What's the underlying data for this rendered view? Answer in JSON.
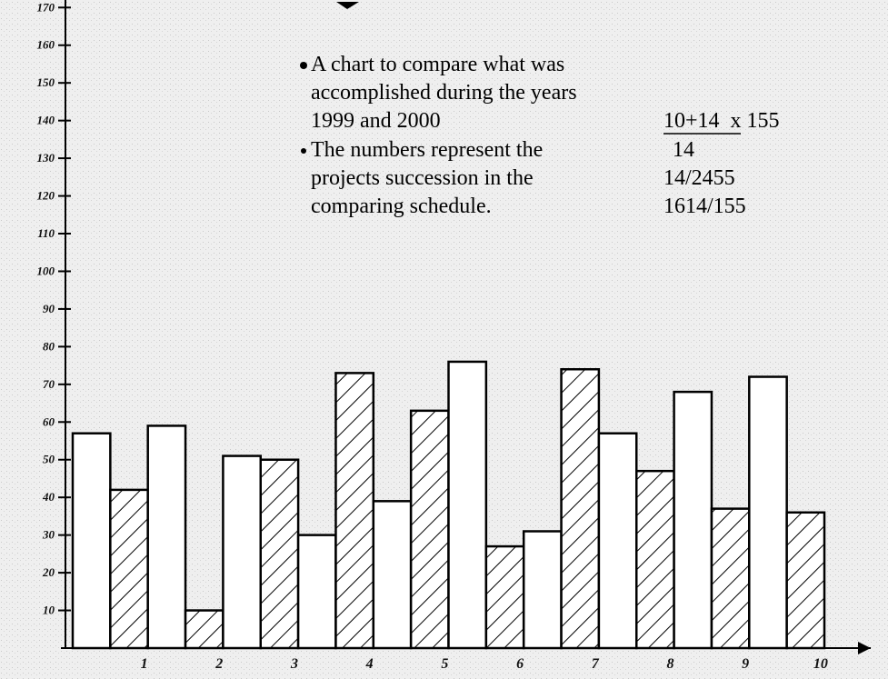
{
  "chart_data": {
    "type": "bar",
    "annotations": {
      "left": [
        "A chart to compare what was",
        "accomplished during the years",
        "1999 and 2000",
        "The numbers represent the",
        "projects succession in the",
        "comparing schedule."
      ],
      "right": [
        "10+14  x 155",
        "14",
        "14/2455",
        "1614/155"
      ]
    },
    "categories": [
      "1",
      "2",
      "3",
      "4",
      "5",
      "6",
      "7",
      "8",
      "9",
      "10"
    ],
    "series": [
      {
        "color": "#ffffff",
        "hatch": false,
        "values": [
          57,
          59,
          51,
          30,
          39,
          76,
          31,
          57,
          68,
          72
        ]
      },
      {
        "color": "#ffffff",
        "hatch": true,
        "values": [
          42,
          10,
          50,
          73,
          63,
          27,
          74,
          47,
          37,
          36
        ]
      }
    ],
    "ylim": [
      0,
      172
    ],
    "yticks": [
      10,
      20,
      30,
      40,
      50,
      60,
      70,
      80,
      90,
      100,
      110,
      120,
      130,
      140,
      150,
      160,
      170
    ],
    "grid": false
  }
}
